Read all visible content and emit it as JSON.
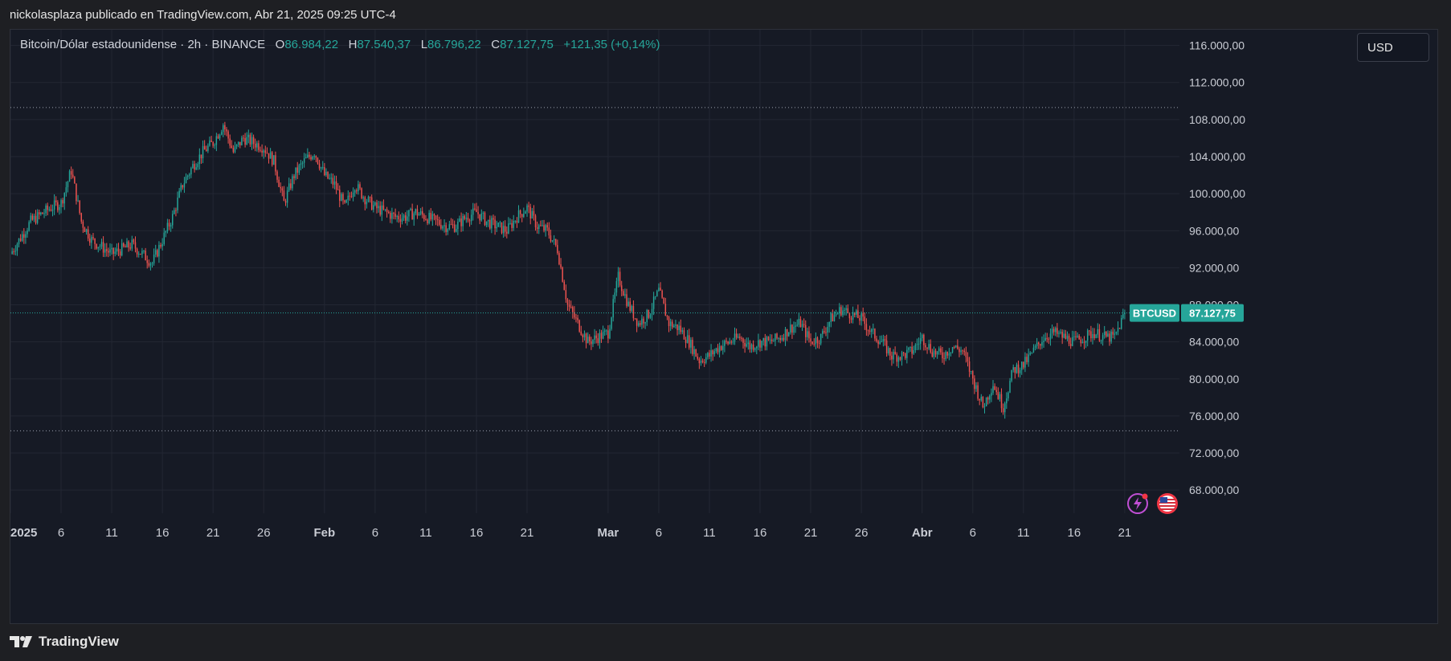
{
  "header": {
    "attribution": "nickolasplaza publicado en TradingView.com, Abr 21, 2025 09:25 UTC-4"
  },
  "legend": {
    "symbol": "Bitcoin/Dólar estadounidense · 2h · BINANCE",
    "o_label": "O",
    "o_value": "86.984,22",
    "h_label": "H",
    "h_value": "87.540,37",
    "l_label": "L",
    "l_value": "86.796,22",
    "c_label": "C",
    "c_value": "87.127,75",
    "change": "+121,35 (+0,14%)"
  },
  "currency_button": "USD",
  "price_tag": {
    "symbol": "BTCUSD",
    "price": "87.127,75"
  },
  "footer": {
    "brand": "TradingView"
  },
  "colors": {
    "up": "#26a69a",
    "down": "#ef5350",
    "background": "#161a25",
    "grid": "#232733"
  },
  "icons": [
    "lightning-icon",
    "us-flag-icon"
  ],
  "chart_data": {
    "type": "candlestick",
    "title": "Bitcoin/Dólar estadounidense · 2h · BINANCE",
    "y_ticks": [
      "68.000,00",
      "72.000,00",
      "76.000,00",
      "80.000,00",
      "84.000,00",
      "88.000,00",
      "92.000,00",
      "96.000,00",
      "100.000,00",
      "104.000,00",
      "108.000,00",
      "112.000,00",
      "116.000,00"
    ],
    "y_tick_values": [
      68000,
      72000,
      76000,
      80000,
      84000,
      88000,
      92000,
      96000,
      100000,
      104000,
      108000,
      112000,
      116000
    ],
    "ylim": [
      65500,
      117700
    ],
    "x_ticks": [
      {
        "label": "2025",
        "day": 0,
        "bold": true
      },
      {
        "label": "6",
        "day": 5
      },
      {
        "label": "11",
        "day": 10
      },
      {
        "label": "16",
        "day": 15
      },
      {
        "label": "21",
        "day": 20
      },
      {
        "label": "26",
        "day": 25
      },
      {
        "label": "Feb",
        "day": 31,
        "bold": true
      },
      {
        "label": "6",
        "day": 36
      },
      {
        "label": "11",
        "day": 41
      },
      {
        "label": "16",
        "day": 46
      },
      {
        "label": "21",
        "day": 51
      },
      {
        "label": "Mar",
        "day": 59,
        "bold": true
      },
      {
        "label": "6",
        "day": 64
      },
      {
        "label": "11",
        "day": 69
      },
      {
        "label": "16",
        "day": 74
      },
      {
        "label": "21",
        "day": 79
      },
      {
        "label": "26",
        "day": 84
      },
      {
        "label": "Abr",
        "day": 90,
        "bold": true
      },
      {
        "label": "6",
        "day": 95
      },
      {
        "label": "11",
        "day": 100
      },
      {
        "label": "16",
        "day": 105
      },
      {
        "label": "21",
        "day": 110
      }
    ],
    "xlim_days": [
      0,
      115.4
    ],
    "horizontal_levels": [
      109300,
      74400
    ],
    "last_price": 87127.75,
    "price_path": [
      [
        0,
        93500
      ],
      [
        2,
        97000
      ],
      [
        4,
        98500
      ],
      [
        5,
        99000
      ],
      [
        6,
        102500
      ],
      [
        7,
        97000
      ],
      [
        8,
        95000
      ],
      [
        10,
        93500
      ],
      [
        12,
        94500
      ],
      [
        14,
        92500
      ],
      [
        15,
        95000
      ],
      [
        16,
        97500
      ],
      [
        17,
        101000
      ],
      [
        18,
        103000
      ],
      [
        19,
        104500
      ],
      [
        20,
        105500
      ],
      [
        21,
        107500
      ],
      [
        22,
        104500
      ],
      [
        23,
        106000
      ],
      [
        24,
        105500
      ],
      [
        25,
        105000
      ],
      [
        26,
        103500
      ],
      [
        27,
        99000
      ],
      [
        28,
        102000
      ],
      [
        29,
        103500
      ],
      [
        30,
        104500
      ],
      [
        31,
        102000
      ],
      [
        32,
        101000
      ],
      [
        33,
        98500
      ],
      [
        34,
        101000
      ],
      [
        35,
        99500
      ],
      [
        36,
        98500
      ],
      [
        37,
        98000
      ],
      [
        38,
        97500
      ],
      [
        39,
        97500
      ],
      [
        40,
        98000
      ],
      [
        41,
        97500
      ],
      [
        42,
        97000
      ],
      [
        43,
        96500
      ],
      [
        44,
        96500
      ],
      [
        45,
        97500
      ],
      [
        46,
        98000
      ],
      [
        47,
        97000
      ],
      [
        48,
        96500
      ],
      [
        49,
        96000
      ],
      [
        50,
        97500
      ],
      [
        51,
        98500
      ],
      [
        52,
        96500
      ],
      [
        53,
        96000
      ],
      [
        54,
        94000
      ],
      [
        55,
        88000
      ],
      [
        56,
        86000
      ],
      [
        57,
        84000
      ],
      [
        58,
        84500
      ],
      [
        59,
        85000
      ],
      [
        60,
        91000
      ],
      [
        61,
        88000
      ],
      [
        62,
        86000
      ],
      [
        63,
        87000
      ],
      [
        64,
        89500
      ],
      [
        65,
        86000
      ],
      [
        66,
        85500
      ],
      [
        67,
        84000
      ],
      [
        68,
        82000
      ],
      [
        69,
        82500
      ],
      [
        70,
        83500
      ],
      [
        71,
        84000
      ],
      [
        72,
        84500
      ],
      [
        73,
        83500
      ],
      [
        74,
        84000
      ],
      [
        75,
        84000
      ],
      [
        76,
        84500
      ],
      [
        77,
        85500
      ],
      [
        78,
        86000
      ],
      [
        79,
        84000
      ],
      [
        80,
        84500
      ],
      [
        81,
        86500
      ],
      [
        82,
        87500
      ],
      [
        83,
        87000
      ],
      [
        84,
        86500
      ],
      [
        85,
        85000
      ],
      [
        86,
        84000
      ],
      [
        87,
        82500
      ],
      [
        88,
        82500
      ],
      [
        89,
        83000
      ],
      [
        90,
        84500
      ],
      [
        91,
        83000
      ],
      [
        92,
        82500
      ],
      [
        93,
        83500
      ],
      [
        94,
        83000
      ],
      [
        95,
        80000
      ],
      [
        96,
        77000
      ],
      [
        97,
        79500
      ],
      [
        98,
        77000
      ],
      [
        99,
        81000
      ],
      [
        100,
        81500
      ],
      [
        101,
        83000
      ],
      [
        102,
        84500
      ],
      [
        103,
        85000
      ],
      [
        104,
        84500
      ],
      [
        105,
        84000
      ],
      [
        106,
        84500
      ],
      [
        107,
        85000
      ],
      [
        108,
        84500
      ],
      [
        109,
        84500
      ],
      [
        110,
        87127.75
      ]
    ]
  }
}
